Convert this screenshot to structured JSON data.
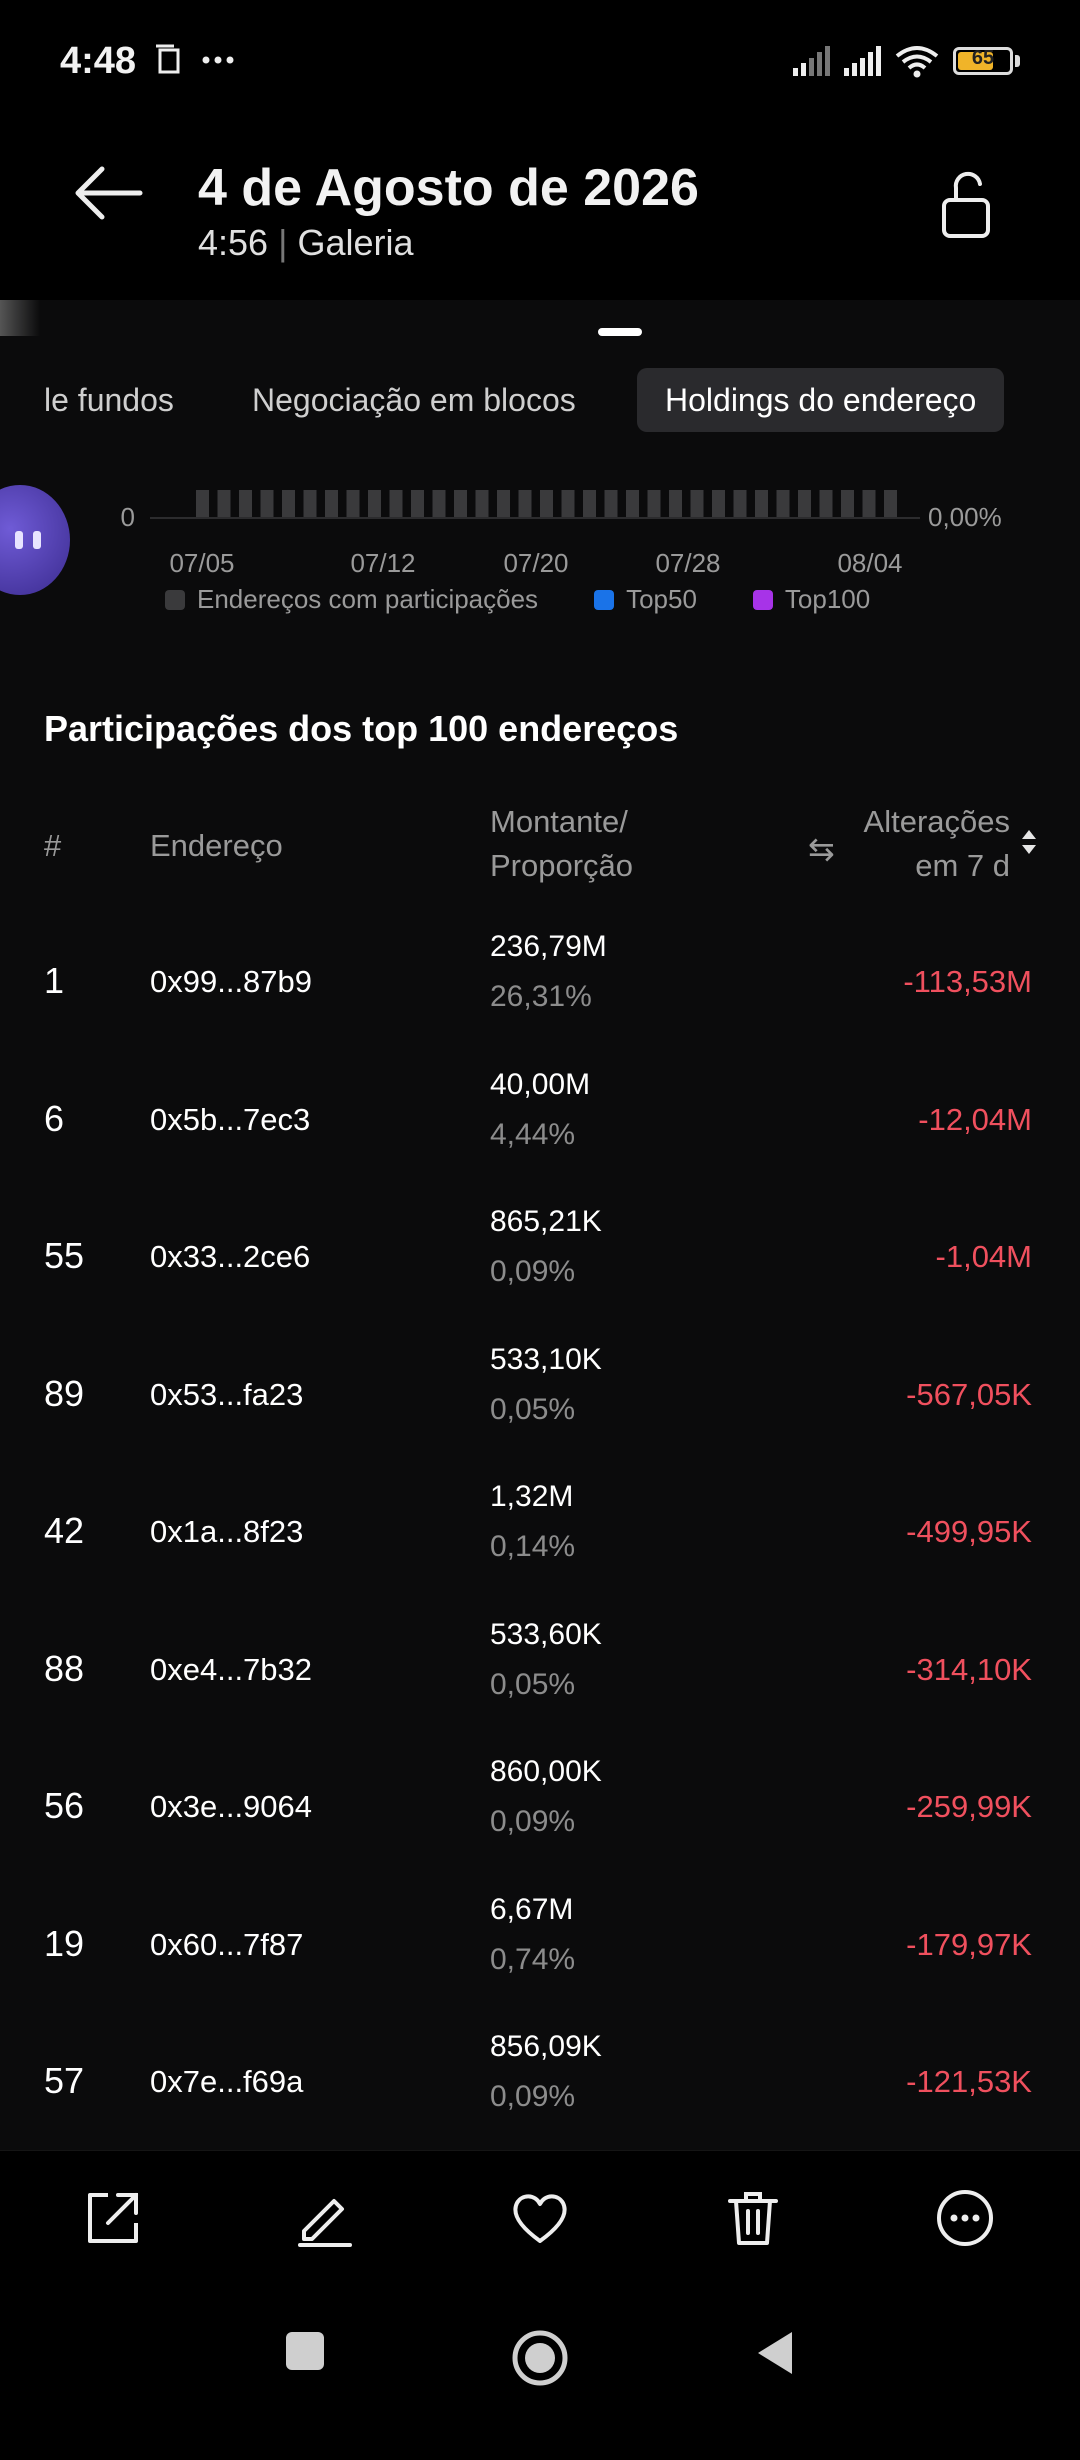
{
  "status_bar": {
    "time": "4:48",
    "battery": "65",
    "battery_level": 0.65
  },
  "header": {
    "title": "4 de Agosto de 2026",
    "time": "4:56",
    "source": "Galeria"
  },
  "tabs": [
    {
      "label": "le fundos",
      "active": false
    },
    {
      "label": "Negociação em blocos",
      "active": false
    },
    {
      "label": "Holdings do endereço",
      "active": true
    }
  ],
  "mini_chart": {
    "y_left_label": "0",
    "y_right_label": "0,00%",
    "x_ticks": [
      "07/05",
      "07/12",
      "07/20",
      "07/28",
      "08/04"
    ],
    "legend": [
      {
        "label": "Endereços com participações",
        "color": "#3a3a3c"
      },
      {
        "label": "Top50",
        "color": "#1a73e8"
      },
      {
        "label": "Top100",
        "color": "#a733e8"
      }
    ]
  },
  "table": {
    "title": "Participações dos top 100 endereços",
    "headers": {
      "num": "#",
      "address": "Endereço",
      "amount_line1": "Montante/",
      "amount_line2": "Proporção",
      "change_line1": "Alterações",
      "change_line2": "em 7 d"
    },
    "rows": [
      {
        "rank": "1",
        "address": "0x99...87b9",
        "amount": "236,79M",
        "pct": "26,31%",
        "change": "-113,53M"
      },
      {
        "rank": "6",
        "address": "0x5b...7ec3",
        "amount": "40,00M",
        "pct": "4,44%",
        "change": "-12,04M"
      },
      {
        "rank": "55",
        "address": "0x33...2ce6",
        "amount": "865,21K",
        "pct": "0,09%",
        "change": "-1,04M"
      },
      {
        "rank": "89",
        "address": "0x53...fa23",
        "amount": "533,10K",
        "pct": "0,05%",
        "change": "-567,05K"
      },
      {
        "rank": "42",
        "address": "0x1a...8f23",
        "amount": "1,32M",
        "pct": "0,14%",
        "change": "-499,95K"
      },
      {
        "rank": "88",
        "address": "0xe4...7b32",
        "amount": "533,60K",
        "pct": "0,05%",
        "change": "-314,10K"
      },
      {
        "rank": "56",
        "address": "0x3e...9064",
        "amount": "860,00K",
        "pct": "0,09%",
        "change": "-259,99K"
      },
      {
        "rank": "19",
        "address": "0x60...7f87",
        "amount": "6,67M",
        "pct": "0,74%",
        "change": "-179,97K"
      },
      {
        "rank": "57",
        "address": "0x7e...f69a",
        "amount": "856,09K",
        "pct": "0,09%",
        "change": "-121,53K"
      }
    ]
  },
  "toolbar": [
    "share-icon",
    "edit-icon",
    "heart-icon",
    "trash-icon",
    "more-icon"
  ],
  "colors": {
    "negative": "#f0505e",
    "accent_purple": "#6f5bd6"
  }
}
